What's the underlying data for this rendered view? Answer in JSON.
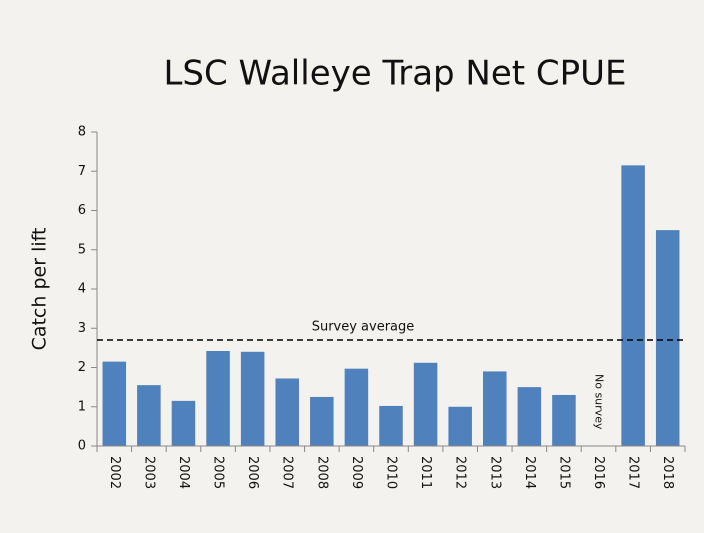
{
  "chart_data": {
    "type": "bar",
    "title": "LSC Walleye Trap Net CPUE",
    "y_label": "Catch per lift",
    "categories": [
      "2002",
      "2003",
      "2004",
      "2005",
      "2006",
      "2007",
      "2008",
      "2009",
      "2010",
      "2011",
      "2012",
      "2013",
      "2014",
      "2015",
      "2016",
      "2017",
      "2018"
    ],
    "values": [
      2.15,
      1.55,
      1.15,
      2.42,
      2.4,
      1.72,
      1.25,
      1.97,
      1.02,
      2.12,
      1.0,
      1.9,
      1.5,
      1.3,
      null,
      7.15,
      5.5
    ],
    "color": "#4f81bd",
    "ylim": [
      0,
      8
    ],
    "yticks": [
      0,
      1,
      2,
      3,
      4,
      5,
      6,
      7,
      8
    ],
    "average": 2.7,
    "average_label": "Survey average",
    "no_data_label": "No survey",
    "grid": false
  }
}
